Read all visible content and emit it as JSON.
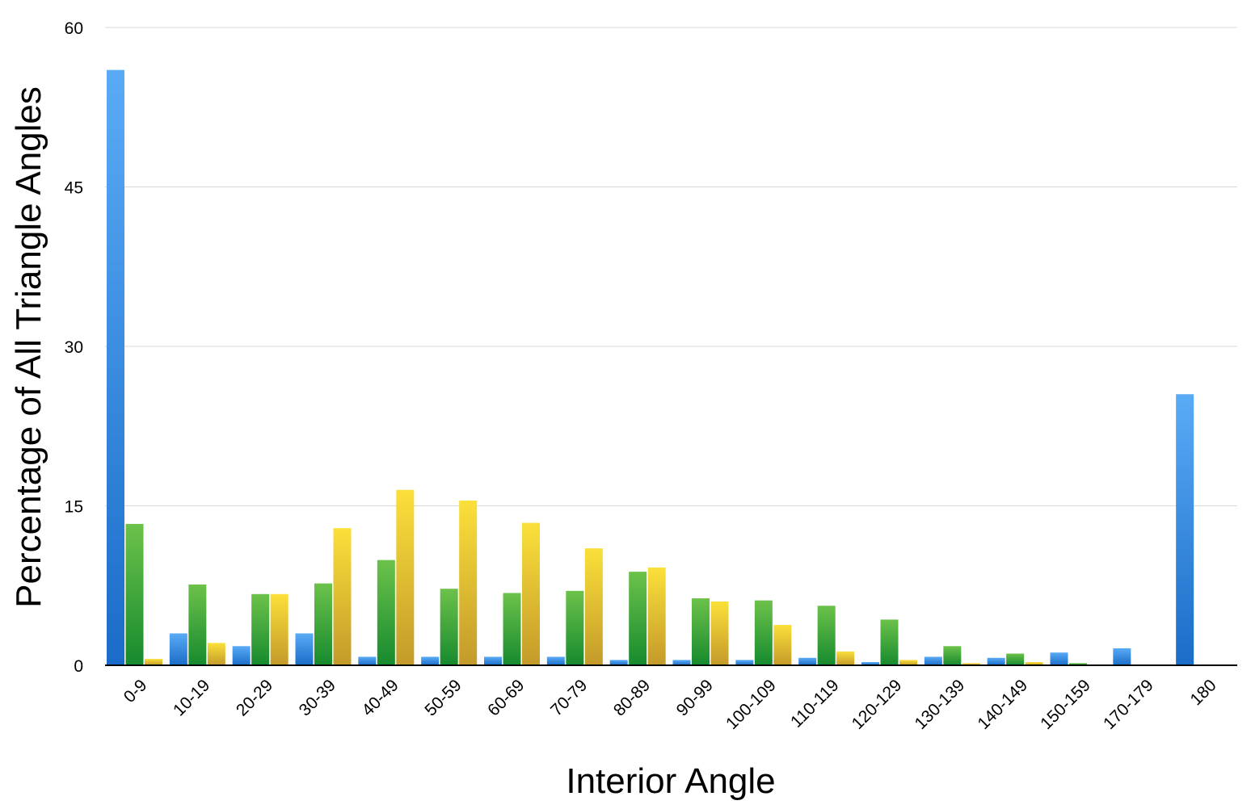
{
  "chart_data": {
    "type": "bar",
    "title": "",
    "xlabel": "Interior Angle",
    "ylabel": "Percentage of All Triangle Angles",
    "ylim": [
      0,
      60
    ],
    "yticks": [
      "0",
      "15",
      "30",
      "45",
      "60"
    ],
    "grid": true,
    "legend": "none",
    "categories": [
      "0-9",
      "10-19",
      "20-29",
      "30-39",
      "40-49",
      "50-59",
      "60-69",
      "70-79",
      "80-89",
      "90-99",
      "100-109",
      "110-119",
      "120-129",
      "130-139",
      "140-149",
      "150-159",
      "170-179",
      "180"
    ],
    "series": [
      {
        "color": "#2a86e0",
        "values": [
          56.0,
          3.0,
          1.8,
          3.0,
          0.8,
          0.8,
          0.8,
          0.8,
          0.5,
          0.5,
          0.5,
          0.7,
          0.3,
          0.8,
          0.7,
          1.2,
          1.6,
          25.5
        ]
      },
      {
        "color": "#3aa83a",
        "values": [
          13.3,
          7.6,
          6.7,
          7.7,
          9.9,
          7.2,
          6.8,
          7.0,
          8.8,
          6.3,
          6.1,
          5.6,
          4.3,
          1.8,
          1.1,
          0.2,
          0,
          0
        ]
      },
      {
        "color": "#e8c42e",
        "values": [
          0.6,
          2.1,
          6.7,
          12.9,
          16.5,
          15.5,
          13.4,
          11.0,
          9.2,
          6.0,
          3.8,
          1.3,
          0.5,
          0.2,
          0.3,
          0,
          0,
          0
        ]
      }
    ]
  }
}
